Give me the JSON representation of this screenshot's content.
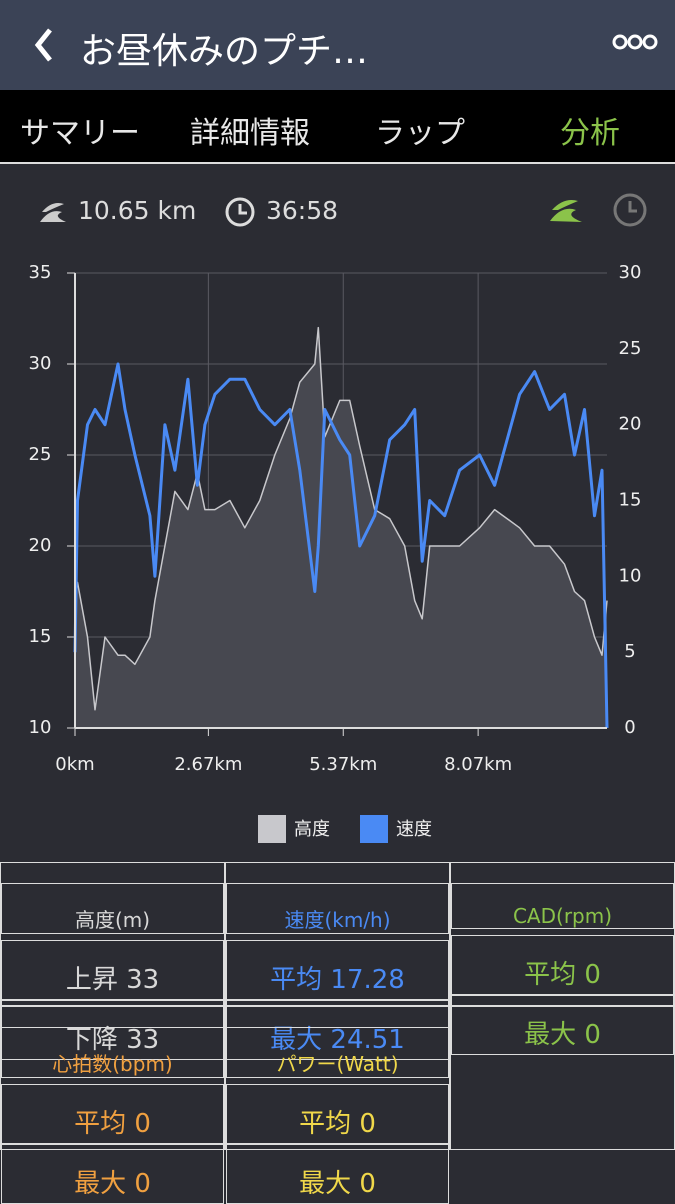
{
  "header": {
    "title": "お昼休みのプチ…"
  },
  "tabs": {
    "items": [
      "サマリー",
      "詳細情報",
      "ラップ",
      "分析"
    ],
    "active": 3,
    "active_color": "#8bc34a"
  },
  "summary": {
    "distance": "10.65 km",
    "time": "36:58"
  },
  "chart_data": {
    "type": "line",
    "x": [
      0,
      0.05,
      0.25,
      0.4,
      0.6,
      0.86,
      1.0,
      1.2,
      1.5,
      1.6,
      1.8,
      2.0,
      2.26,
      2.45,
      2.6,
      2.8,
      3.1,
      3.4,
      3.7,
      4.0,
      4.3,
      4.5,
      4.8,
      4.87,
      5.0,
      5.3,
      5.5,
      5.7,
      6.0,
      6.3,
      6.6,
      6.8,
      6.95,
      7.1,
      7.4,
      7.7,
      8.1,
      8.4,
      8.9,
      9.2,
      9.5,
      9.8,
      10.0,
      10.2,
      10.4,
      10.55,
      10.65
    ],
    "series": [
      {
        "name": "高度",
        "color": "#c8c8cc",
        "fill": "#474850",
        "values": [
          17,
          18,
          15,
          11,
          15,
          14,
          14,
          13.5,
          15,
          17,
          20,
          23,
          22,
          24,
          22,
          22,
          22.5,
          21,
          22.5,
          25,
          27,
          29,
          30,
          32,
          26,
          28,
          28,
          25.5,
          22,
          21.5,
          20,
          17,
          16,
          20,
          20,
          20,
          21,
          22,
          21,
          20,
          20,
          19,
          17.5,
          17,
          15,
          14,
          17
        ]
      },
      {
        "name": "速度",
        "color": "#4a8af4",
        "axis": "y2",
        "values": [
          5,
          15,
          20,
          21,
          20,
          24,
          21,
          18,
          14,
          10,
          20,
          17,
          23,
          16,
          20,
          22,
          23,
          23,
          21,
          20,
          21,
          17,
          9,
          12,
          21,
          19,
          18,
          12,
          14,
          19,
          20,
          21,
          11,
          15,
          14,
          17,
          18,
          16,
          22,
          23.5,
          21,
          22,
          18,
          21,
          14,
          17,
          0
        ]
      }
    ],
    "xlim": [
      0,
      10.65
    ],
    "xticks": [
      {
        "value": 0,
        "label": "0km"
      },
      {
        "value": 2.67,
        "label": "2.67km"
      },
      {
        "value": 5.37,
        "label": "5.37km"
      },
      {
        "value": 8.07,
        "label": "8.07km"
      }
    ],
    "ylim": [
      10,
      35
    ],
    "yticks": [
      10,
      15,
      20,
      25,
      30,
      35
    ],
    "y2lim": [
      0,
      30
    ],
    "y2ticks": [
      0,
      5,
      10,
      15,
      20,
      25,
      30
    ],
    "grid": true
  },
  "stats": [
    {
      "title": "高度(m)",
      "lines": [
        "上昇 33",
        "下降 33"
      ],
      "color": "#d8d8d8"
    },
    {
      "title": "速度(km/h)",
      "lines": [
        "平均 17.28",
        "最大 24.51"
      ],
      "color": "#4a8af4"
    },
    {
      "title": "CAD(rpm)",
      "lines": [
        "平均 0",
        "最大 0"
      ],
      "color": "#8bc34a"
    },
    {
      "title": "心拍数(bpm)",
      "lines": [
        "平均 0",
        "最大 0"
      ],
      "color": "#f0a040"
    },
    {
      "title": "パワー(Watt)",
      "lines": [
        "平均 0",
        "最大 0"
      ],
      "color": "#f0d84a"
    }
  ]
}
